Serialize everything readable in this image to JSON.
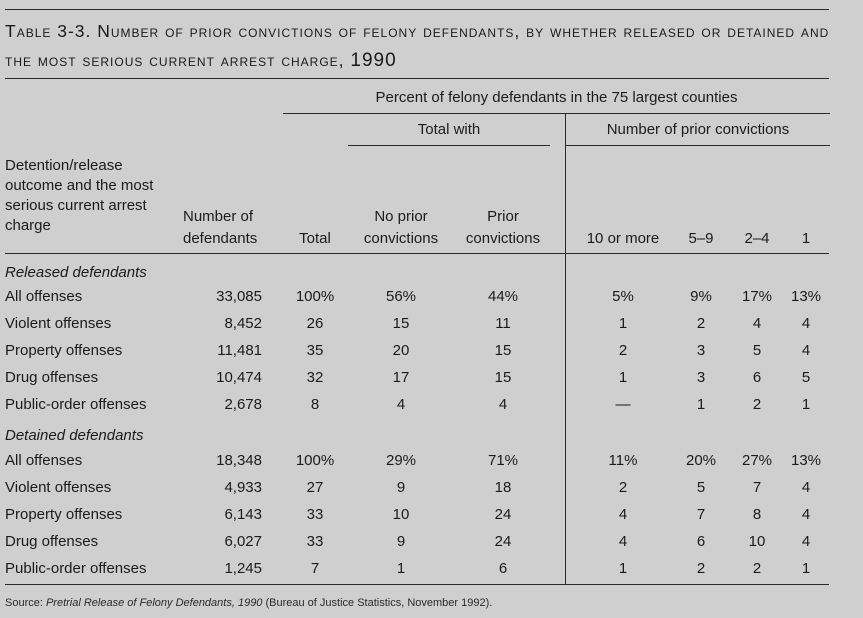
{
  "title": {
    "text": "Table 3-3. Number of prior convictions of felony defendants, by whether released or detained and the most serious current arrest charge,",
    "year": "1990"
  },
  "header": {
    "span_top": "Percent of felony defendants in the 75 largest counties",
    "span_total_with": "Total with",
    "span_prior_number": "Number of prior convictions",
    "col_label_lines": [
      "Detention/release",
      "outcome and the most",
      "serious current arrest",
      "charge"
    ],
    "col_number_lines": [
      "Number of",
      "defendants"
    ],
    "col_total": "Total",
    "col_no_prior_lines": [
      "No prior",
      "convictions"
    ],
    "col_prior_lines": [
      "Prior",
      "convictions"
    ],
    "col_10_or_more": "10 or more",
    "col_5_9": "5–9",
    "col_2_4": "2–4",
    "col_1": "1"
  },
  "sections": [
    {
      "title": "Released defendants",
      "rows": [
        {
          "label": "All offenses",
          "number": "33,085",
          "total": "100%",
          "no_prior": "56%",
          "prior": "44%",
          "ten_plus": "5%",
          "five_nine": "9%",
          "two_four": "17%",
          "one": "13%"
        },
        {
          "label": "Violent offenses",
          "number": "8,452",
          "total": "26",
          "no_prior": "15",
          "prior": "11",
          "ten_plus": "1",
          "five_nine": "2",
          "two_four": "4",
          "one": "4"
        },
        {
          "label": "Property offenses",
          "number": "11,481",
          "total": "35",
          "no_prior": "20",
          "prior": "15",
          "ten_plus": "2",
          "five_nine": "3",
          "two_four": "5",
          "one": "4"
        },
        {
          "label": "Drug offenses",
          "number": "10,474",
          "total": "32",
          "no_prior": "17",
          "prior": "15",
          "ten_plus": "1",
          "five_nine": "3",
          "two_four": "6",
          "one": "5"
        },
        {
          "label": "Public-order offenses",
          "number": "2,678",
          "total": "8",
          "no_prior": "4",
          "prior": "4",
          "ten_plus": "—",
          "five_nine": "1",
          "two_four": "2",
          "one": "1"
        }
      ]
    },
    {
      "title": "Detained defendants",
      "rows": [
        {
          "label": "All offenses",
          "number": "18,348",
          "total": "100%",
          "no_prior": "29%",
          "prior": "71%",
          "ten_plus": "11%",
          "five_nine": "20%",
          "two_four": "27%",
          "one": "13%"
        },
        {
          "label": "Violent offenses",
          "number": "4,933",
          "total": "27",
          "no_prior": "9",
          "prior": "18",
          "ten_plus": "2",
          "five_nine": "5",
          "two_four": "7",
          "one": "4"
        },
        {
          "label": "Property offenses",
          "number": "6,143",
          "total": "33",
          "no_prior": "10",
          "prior": "24",
          "ten_plus": "4",
          "five_nine": "7",
          "two_four": "8",
          "one": "4"
        },
        {
          "label": "Drug offenses",
          "number": "6,027",
          "total": "33",
          "no_prior": "9",
          "prior": "24",
          "ten_plus": "4",
          "five_nine": "6",
          "two_four": "10",
          "one": "4"
        },
        {
          "label": "Public-order offenses",
          "number": "1,245",
          "total": "7",
          "no_prior": "1",
          "prior": "6",
          "ten_plus": "1",
          "five_nine": "2",
          "two_four": "2",
          "one": "1"
        }
      ]
    }
  ],
  "source": {
    "prefix": "Source: ",
    "title_italic": "Pretrial Release of Felony Defendants, 1990",
    "suffix": " (Bureau of Justice Statistics, November 1992)."
  }
}
